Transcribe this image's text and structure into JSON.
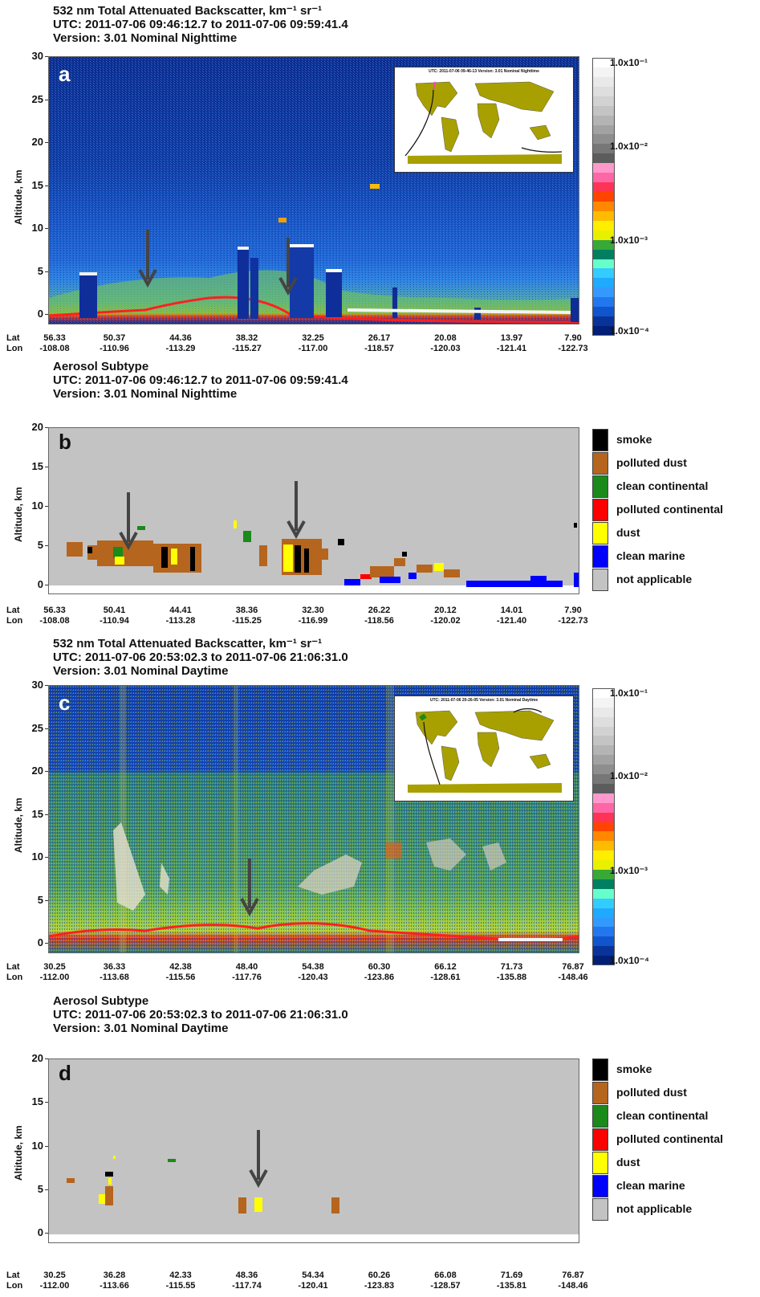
{
  "panels": [
    {
      "id": "a",
      "title_lines": [
        "532 nm Total Attenuated Backscatter, km⁻¹ sr⁻¹",
        "UTC: 2011-07-06 09:46:12.7 to 2011-07-06 09:59:41.4",
        "Version: 3.01 Nominal Nighttime"
      ],
      "letter": "a",
      "ylabel": "Altitude, km",
      "yticks": [
        "30",
        "25",
        "20",
        "15",
        "10",
        "5",
        "0"
      ],
      "lat": [
        "56.33",
        "50.37",
        "44.36",
        "38.32",
        "32.25",
        "26.17",
        "20.08",
        "13.97",
        "7.90"
      ],
      "lon": [
        "-108.08",
        "-110.96",
        "-113.29",
        "-115.27",
        "-117.00",
        "-118.57",
        "-120.03",
        "-121.41",
        "-122.73"
      ],
      "inset_title": "UTC: 2011-07-06 09-46-13   Version: 3.01 Nominal   Nighttime"
    },
    {
      "id": "b",
      "title_lines": [
        "Aerosol Subtype",
        "UTC: 2011-07-06  09:46:12.7 to 2011-07-06 09:59:41.4",
        "Version: 3.01 Nominal Nighttime"
      ],
      "letter": "b",
      "ylabel": "Altitude, km",
      "yticks": [
        "20",
        "15",
        "10",
        "5",
        "0"
      ],
      "lat": [
        "56.33",
        "50.41",
        "44.41",
        "38.36",
        "32.30",
        "26.22",
        "20.12",
        "14.01",
        "7.90"
      ],
      "lon": [
        "-108.08",
        "-110.94",
        "-113.28",
        "-115.25",
        "-116.99",
        "-118.56",
        "-120.02",
        "-121.40",
        "-122.73"
      ]
    },
    {
      "id": "c",
      "title_lines": [
        "532 nm Total Attenuated Backscatter, km⁻¹ sr⁻¹",
        "UTC: 2011-07-06 20:53:02.3 to 2011-07-06 21:06:31.0",
        "Version: 3.01 Nominal Daytime"
      ],
      "letter": "c",
      "ylabel": "Altitude, km",
      "yticks": [
        "30",
        "25",
        "20",
        "15",
        "10",
        "5",
        "0"
      ],
      "lat": [
        "30.25",
        "36.33",
        "42.38",
        "48.40",
        "54.38",
        "60.30",
        "66.12",
        "71.73",
        "76.87"
      ],
      "lon": [
        "-112.00",
        "-113.68",
        "-115.56",
        "-117.76",
        "-120.43",
        "-123.86",
        "-128.61",
        "-135.88",
        "-148.46"
      ],
      "inset_title": "UTC: 2011-07-06 20-26-05   Version: 3.01 Nominal   Daytime"
    },
    {
      "id": "d",
      "title_lines": [
        "Aerosol Subtype",
        "UTC: 2011-07-06  20:53:02.3 to 2011-07-06 21:06:31.0",
        "Version: 3.01 Nominal Daytime"
      ],
      "letter": "d",
      "ylabel": "Altitude, km",
      "yticks": [
        "20",
        "15",
        "10",
        "5",
        "0"
      ],
      "lat": [
        "30.25",
        "36.28",
        "42.33",
        "48.36",
        "54.34",
        "60.26",
        "66.08",
        "71.69",
        "76.87"
      ],
      "lon": [
        "-112.00",
        "-113.66",
        "-115.55",
        "-117.74",
        "-120.41",
        "-123.83",
        "-128.57",
        "-135.81",
        "-148.46"
      ]
    }
  ],
  "axis_row_labels": {
    "lat": "Lat",
    "lon": "Lon"
  },
  "colorbar": {
    "labels": [
      "1.0x10⁻¹",
      "1.0x10⁻²",
      "1.0x10⁻³",
      "1.0x10⁻⁴"
    ],
    "colors": [
      "#ffffff",
      "#f4f4f4",
      "#e9e9e9",
      "#dedede",
      "#d2d2d2",
      "#c4c4c4",
      "#b4b4b4",
      "#a2a2a2",
      "#8e8e8e",
      "#777777",
      "#5c5c5c",
      "#ff99cc",
      "#ff66a6",
      "#ff3355",
      "#ff4400",
      "#ff8800",
      "#ffbb00",
      "#ffee00",
      "#e8f000",
      "#38a838",
      "#008060",
      "#66ffcc",
      "#33ccff",
      "#1faaff",
      "#3399ff",
      "#2277ee",
      "#1155cc",
      "#0a3399",
      "#001f77"
    ]
  },
  "legend": {
    "items": [
      {
        "label": "smoke",
        "color": "#000000"
      },
      {
        "label": "polluted dust",
        "color": "#b5651d"
      },
      {
        "label": "clean continental",
        "color": "#1a8a1a"
      },
      {
        "label": "polluted continental",
        "color": "#ff0000"
      },
      {
        "label": "dust",
        "color": "#ffff00"
      },
      {
        "label": "clean marine",
        "color": "#0000ff"
      },
      {
        "label": "not applicable",
        "color": "#c3c3c3"
      }
    ]
  },
  "chart_data": [
    {
      "type": "heatmap",
      "title": "532 nm Total Attenuated Backscatter, km⁻¹ sr⁻¹",
      "subtitle": "UTC: 2011-07-06 09:46:12.7 to 2011-07-06 09:59:41.4; Version: 3.01 Nominal Nighttime",
      "ylabel": "Altitude, km",
      "ylim": [
        -1,
        30
      ],
      "x_lat": [
        56.33,
        50.37,
        44.36,
        38.32,
        32.25,
        26.17,
        20.08,
        13.97,
        7.9
      ],
      "x_lon": [
        -108.08,
        -110.96,
        -113.29,
        -115.27,
        -117.0,
        -118.57,
        -120.03,
        -121.41,
        -122.73
      ],
      "colorbar_range": [
        0.0001,
        0.1
      ],
      "colorbar_scale": "log"
    },
    {
      "type": "heatmap",
      "title": "Aerosol Subtype",
      "subtitle": "UTC: 2011-07-06  09:46:12.7 to 2011-07-06 09:59:41.4; Version: 3.01 Nominal Nighttime",
      "ylabel": "Altitude, km",
      "ylim": [
        -1,
        20
      ],
      "x_lat": [
        56.33,
        50.41,
        44.41,
        38.36,
        32.3,
        26.22,
        20.12,
        14.01,
        7.9
      ],
      "x_lon": [
        -108.08,
        -110.94,
        -113.28,
        -115.25,
        -116.99,
        -118.56,
        -120.02,
        -121.4,
        -122.73
      ],
      "categories": [
        "smoke",
        "polluted dust",
        "clean continental",
        "polluted continental",
        "dust",
        "clean marine",
        "not applicable"
      ]
    },
    {
      "type": "heatmap",
      "title": "532 nm Total Attenuated Backscatter, km⁻¹ sr⁻¹",
      "subtitle": "UTC: 2011-07-06 20:53:02.3 to 2011-07-06 21:06:31.0; Version: 3.01 Nominal Daytime",
      "ylabel": "Altitude, km",
      "ylim": [
        -1,
        30
      ],
      "x_lat": [
        30.25,
        36.33,
        42.38,
        48.4,
        54.38,
        60.3,
        66.12,
        71.73,
        76.87
      ],
      "x_lon": [
        -112.0,
        -113.68,
        -115.56,
        -117.76,
        -120.43,
        -123.86,
        -128.61,
        -135.88,
        -148.46
      ],
      "colorbar_range": [
        0.0001,
        0.1
      ],
      "colorbar_scale": "log"
    },
    {
      "type": "heatmap",
      "title": "Aerosol Subtype",
      "subtitle": "UTC: 2011-07-06  20:53:02.3 to 2011-07-06 21:06:31.0; Version: 3.01 Nominal Daytime",
      "ylabel": "Altitude, km",
      "ylim": [
        -1,
        20
      ],
      "x_lat": [
        30.25,
        36.28,
        42.33,
        48.36,
        54.34,
        60.26,
        66.08,
        71.69,
        76.87
      ],
      "x_lon": [
        -112.0,
        -113.66,
        -115.55,
        -117.74,
        -120.41,
        -123.83,
        -128.57,
        -135.81,
        -148.46
      ],
      "categories": [
        "smoke",
        "polluted dust",
        "clean continental",
        "polluted continental",
        "dust",
        "clean marine",
        "not applicable"
      ]
    }
  ]
}
